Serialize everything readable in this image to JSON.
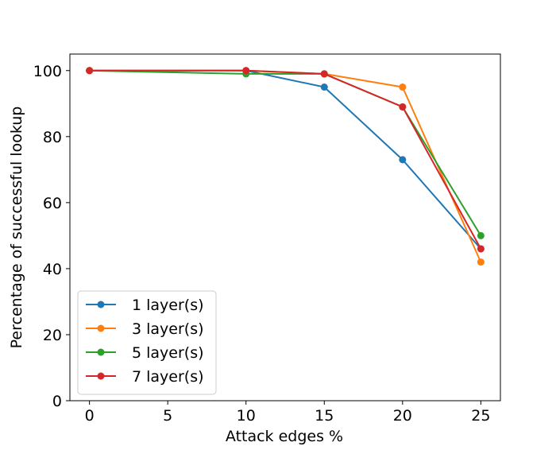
{
  "chart_data": {
    "type": "line",
    "xlabel": "Attack edges %",
    "ylabel": "Percentage of successful lookup",
    "x": [
      0,
      10,
      15,
      20,
      25
    ],
    "xticks": [
      0,
      5,
      10,
      15,
      20,
      25
    ],
    "yticks": [
      0,
      20,
      40,
      60,
      80,
      100
    ],
    "xlim": [
      -1.25,
      26.25
    ],
    "ylim": [
      0,
      105
    ],
    "grid": false,
    "legend_position": "lower-left",
    "series": [
      {
        "name": "1 layer(s)",
        "color": "#1f77b4",
        "values": [
          100,
          100,
          95,
          73,
          46
        ]
      },
      {
        "name": "3 layer(s)",
        "color": "#ff7f0e",
        "values": [
          100,
          100,
          99,
          95,
          42
        ]
      },
      {
        "name": "5 layer(s)",
        "color": "#2ca02c",
        "values": [
          100,
          99,
          99,
          89,
          50
        ]
      },
      {
        "name": "7 layer(s)",
        "color": "#d62728",
        "values": [
          100,
          100,
          99,
          89,
          46
        ]
      }
    ]
  }
}
